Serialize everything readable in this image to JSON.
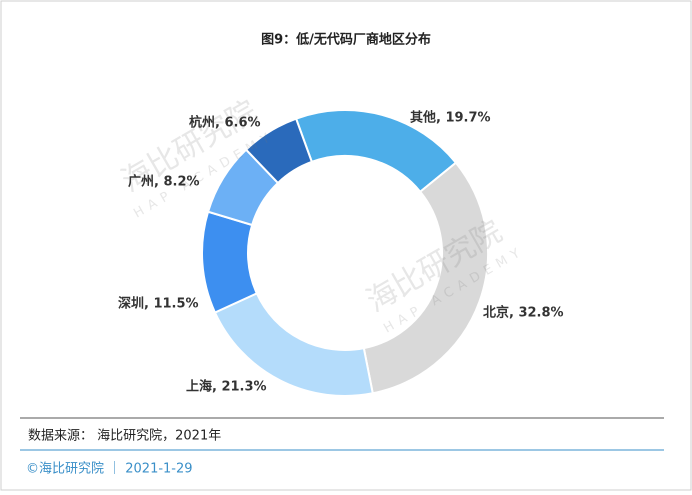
{
  "chart_data": {
    "type": "donut",
    "title": "图9：低/无代码厂商地区分布",
    "values": [
      19.7,
      32.8,
      21.3,
      11.5,
      8.2,
      6.6
    ],
    "value_labels": [
      "其他, 19.7%",
      "北京, 32.8%",
      "上海, 21.3%",
      "深圳, 11.5%",
      "广州, 8.2%",
      "杭州, 6.6%"
    ],
    "colors": [
      "#4daee9",
      "#d9d9d9",
      "#b4dcfb",
      "#3d8ff0",
      "#6cb0f5",
      "#2a6abb"
    ],
    "source": "数据来源： 海比研究院，2021年",
    "footer": "©海比研究院 ｜ 2021-1-29",
    "watermark": {
      "name": "海比研究院",
      "sub": "HAP ACADEMY"
    }
  }
}
